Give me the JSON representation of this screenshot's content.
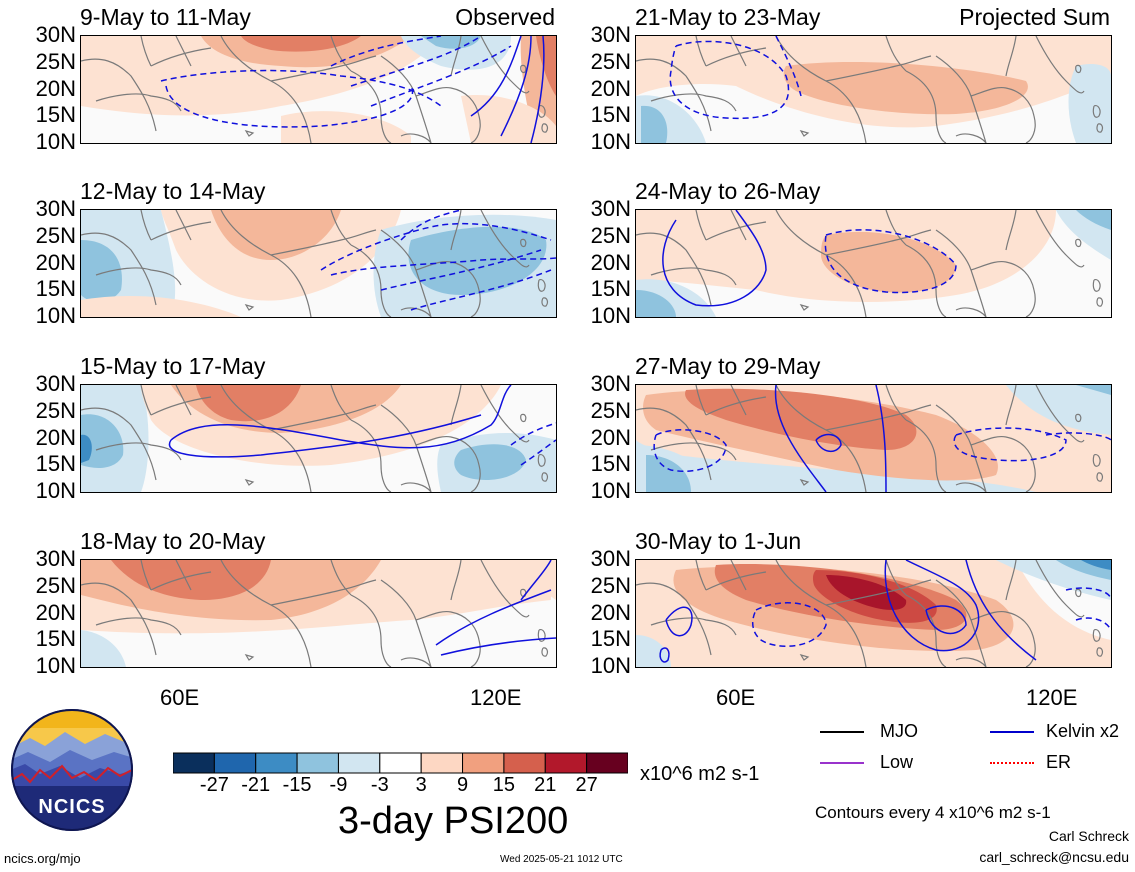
{
  "panels_left": [
    {
      "title": "9-May to 11-May",
      "tag": "Observed"
    },
    {
      "title": "12-May to 14-May",
      "tag": ""
    },
    {
      "title": "15-May to 17-May",
      "tag": ""
    },
    {
      "title": "18-May to 20-May",
      "tag": ""
    }
  ],
  "panels_right": [
    {
      "title": "21-May to 23-May",
      "tag": "Projected Sum"
    },
    {
      "title": "24-May to 26-May",
      "tag": ""
    },
    {
      "title": "27-May to 29-May",
      "tag": ""
    },
    {
      "title": "30-May to 1-Jun",
      "tag": ""
    }
  ],
  "lat_labels": [
    "30N",
    "25N",
    "20N",
    "15N",
    "10N"
  ],
  "lon_labels": [
    "60E",
    "120E"
  ],
  "colorbar": {
    "labels": [
      "-27",
      "-21",
      "-15",
      "-9",
      "-3",
      "3",
      "9",
      "15",
      "21",
      "27"
    ],
    "colors": [
      "#0a2f5c",
      "#1f66ad",
      "#3d8cc4",
      "#8fc3de",
      "#d2e6f1",
      "#ffffff",
      "#fdd7c3",
      "#f1a07f",
      "#d5604d",
      "#b2182b",
      "#67001f"
    ],
    "units": "x10^6 m2 s-1"
  },
  "main_title": "3-day PSI200",
  "legend": [
    {
      "label": "MJO",
      "color": "#000000"
    },
    {
      "label": "Kelvin x2",
      "color": "#0000cc"
    },
    {
      "label": "Low",
      "color": "#9932cc"
    },
    {
      "label": "ER",
      "color": "#ff0000"
    }
  ],
  "contour_note": "Contours every 4 x10^6 m2 s-1",
  "author": "Carl Schreck",
  "email": "carl_schreck@ncsu.edu",
  "site": "ncics.org/mjo",
  "timestamp": "Wed 2025-05-21 1012 UTC",
  "logo_text": "NCICS"
}
